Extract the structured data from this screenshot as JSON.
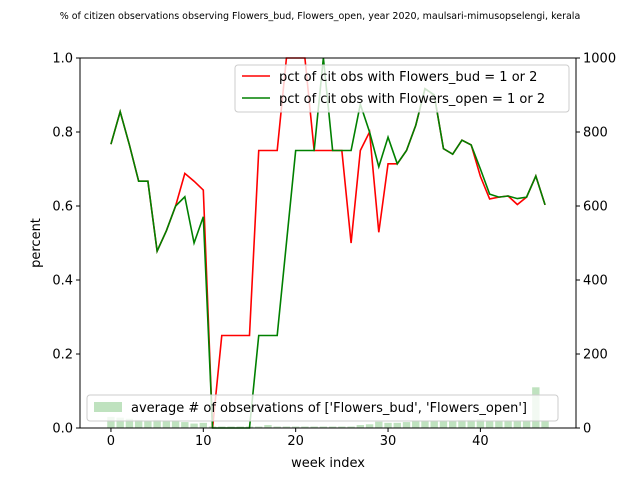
{
  "chart_data": {
    "type": "line",
    "title": "% of citizen observations observing Flowers_bud, Flowers_open, year 2020, maulsari-mimusopselengi, kerala",
    "xlabel": "week index",
    "ylabel": "percent",
    "xlim": [
      -3.35,
      50.35
    ],
    "ylim": [
      0,
      1.0
    ],
    "y2lim": [
      0,
      1000
    ],
    "xticks": [
      0,
      10,
      20,
      30,
      40
    ],
    "yticks": [
      0.0,
      0.2,
      0.4,
      0.6,
      0.8,
      1.0
    ],
    "y2ticks": [
      0,
      200,
      400,
      600,
      800,
      1000
    ],
    "grid": false,
    "legend_lines": "top-right",
    "legend_bars": "bottom-left",
    "series": [
      {
        "name": "pct of cit obs with Flowers_bud = 1 or 2",
        "color": "#ff0000",
        "x": [
          0,
          1,
          2,
          3,
          4,
          5,
          6,
          7,
          8,
          9,
          10,
          11,
          12,
          13,
          14,
          15,
          16,
          17,
          18,
          19,
          20,
          21,
          22,
          23,
          24,
          25,
          26,
          27,
          28,
          29,
          30,
          31,
          32,
          33,
          34,
          35,
          36,
          37,
          38,
          39,
          40,
          41,
          42,
          43,
          44,
          45,
          46,
          47
        ],
        "y": [
          0.767,
          0.855,
          0.765,
          0.667,
          0.667,
          0.478,
          0.533,
          0.6,
          0.688,
          0.667,
          0.643,
          0.0,
          0.25,
          0.25,
          0.25,
          0.25,
          0.75,
          0.75,
          0.75,
          1.0,
          1.0,
          1.0,
          0.75,
          0.75,
          0.75,
          0.75,
          0.5,
          0.75,
          0.8,
          0.529,
          0.714,
          0.714,
          0.75,
          0.818,
          0.917,
          0.9,
          0.755,
          0.74,
          0.778,
          0.765,
          0.68,
          0.619,
          0.624,
          0.627,
          0.604,
          0.624,
          0.681,
          0.603
        ]
      },
      {
        "name": "pct of cit obs with Flowers_open = 1 or 2",
        "color": "#008000",
        "x": [
          0,
          1,
          2,
          3,
          4,
          5,
          6,
          7,
          8,
          9,
          10,
          11,
          12,
          13,
          14,
          15,
          16,
          17,
          18,
          19,
          20,
          21,
          22,
          23,
          24,
          25,
          26,
          27,
          28,
          29,
          30,
          31,
          32,
          33,
          34,
          35,
          36,
          37,
          38,
          39,
          40,
          41,
          42,
          43,
          44,
          45,
          46,
          47
        ],
        "y": [
          0.767,
          0.855,
          0.765,
          0.667,
          0.667,
          0.478,
          0.533,
          0.6,
          0.625,
          0.5,
          0.571,
          0.0,
          0.0,
          0.0,
          0.0,
          0.0,
          0.25,
          0.25,
          0.25,
          0.5,
          0.75,
          0.75,
          0.75,
          1.0,
          0.75,
          0.75,
          0.75,
          0.875,
          0.8,
          0.706,
          0.786,
          0.714,
          0.75,
          0.818,
          0.917,
          0.9,
          0.755,
          0.74,
          0.778,
          0.765,
          0.7,
          0.632,
          0.624,
          0.627,
          0.62,
          0.624,
          0.681,
          0.603
        ]
      }
    ],
    "bars": {
      "name": "average # of observations of ['Flowers_bud', 'Flowers_open']",
      "color": "#2ca02c",
      "alpha": 0.3,
      "x": [
        0,
        1,
        2,
        3,
        4,
        5,
        6,
        7,
        8,
        9,
        10,
        11,
        12,
        13,
        14,
        15,
        16,
        17,
        18,
        19,
        20,
        21,
        22,
        23,
        24,
        25,
        26,
        27,
        28,
        29,
        30,
        31,
        32,
        33,
        34,
        35,
        36,
        37,
        38,
        39,
        40,
        41,
        42,
        43,
        44,
        45,
        46,
        47
      ],
      "values": [
        30,
        28,
        25,
        22,
        20,
        22,
        20,
        18,
        16,
        12,
        14,
        4,
        4,
        4,
        4,
        4,
        4,
        8,
        4,
        4,
        4,
        4,
        4,
        4,
        4,
        4,
        4,
        8,
        10,
        17,
        14,
        14,
        16,
        18,
        18,
        18,
        20,
        20,
        22,
        22,
        24,
        20,
        20,
        20,
        18,
        18,
        110,
        20
      ]
    }
  }
}
